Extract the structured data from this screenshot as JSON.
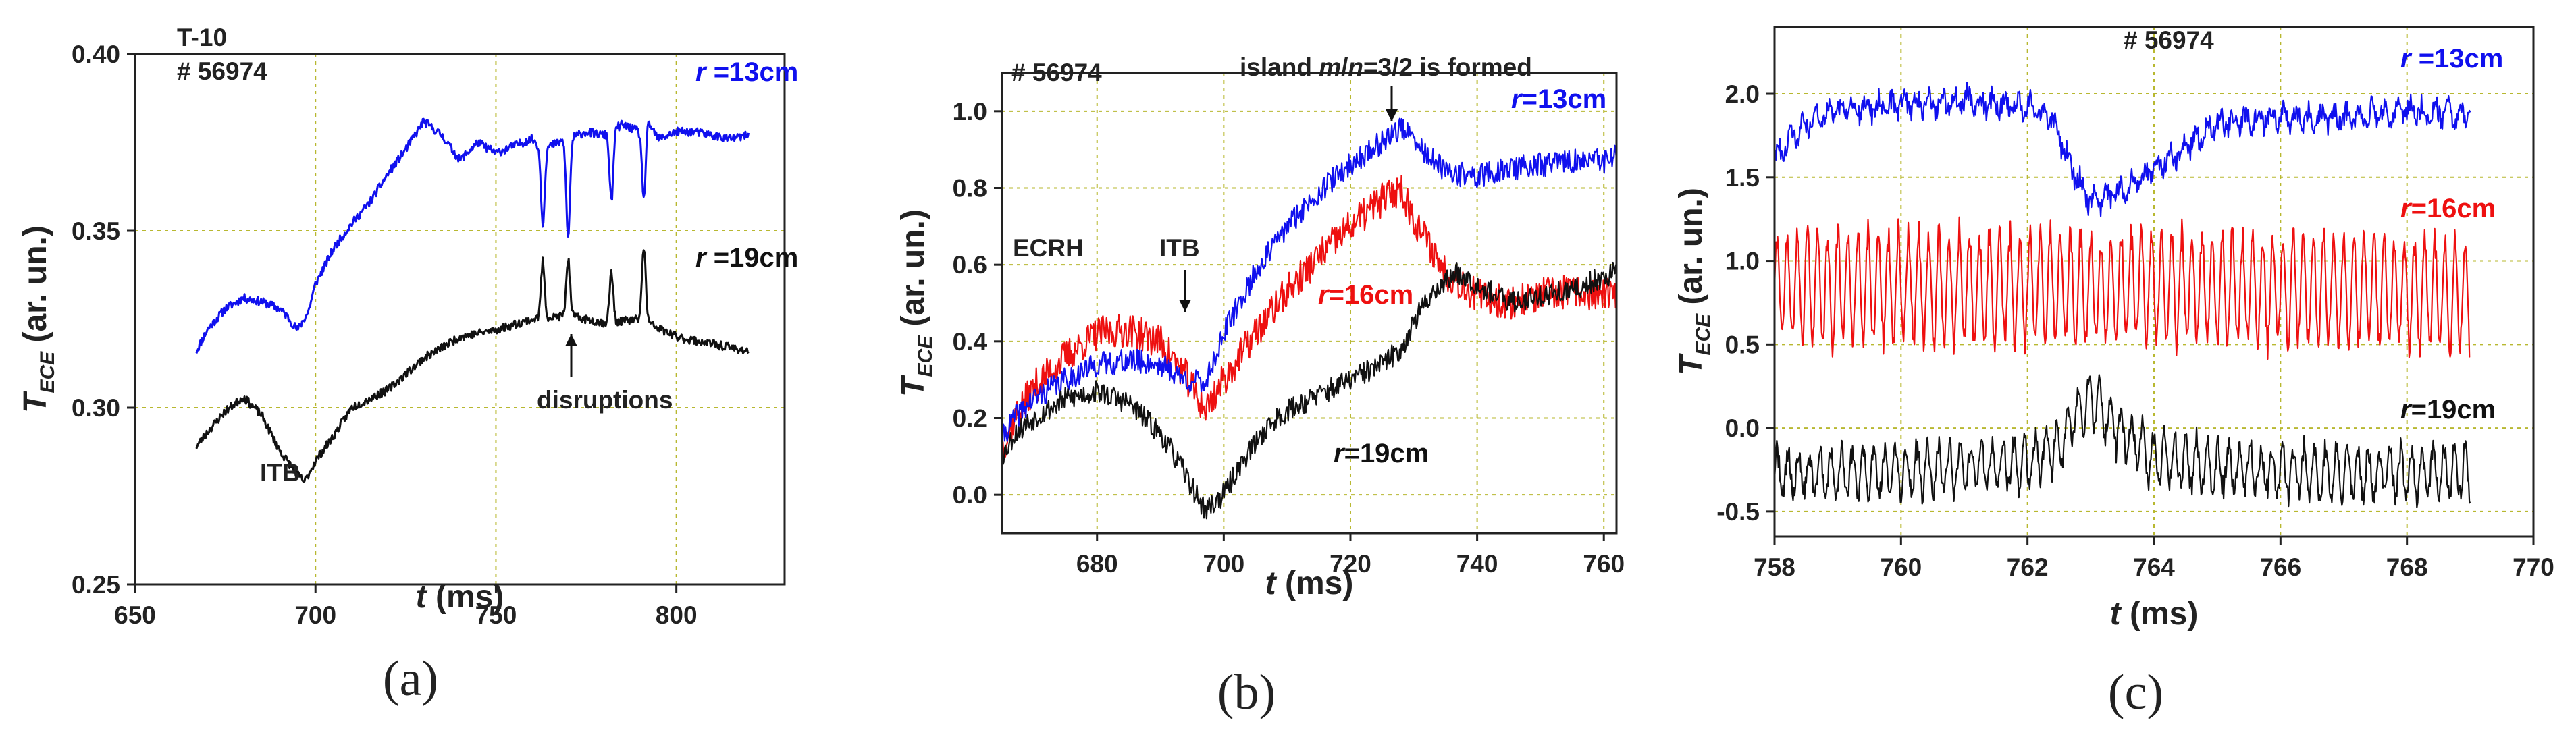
{
  "chart_data": [
    {
      "type": "line",
      "panel_label": "(a)",
      "title": "",
      "xlabel": "t (ms)",
      "ylabel": "T_ECE (ar. un.)",
      "xlim": [
        650,
        830
      ],
      "ylim": [
        0.25,
        0.4
      ],
      "xticks": [
        650,
        700,
        750,
        800
      ],
      "yticks": [
        0.25,
        0.3,
        0.35,
        0.4
      ],
      "xtick_labels": [
        "650",
        "700",
        "750",
        "800"
      ],
      "ytick_labels": [
        "0.25",
        "0.30",
        "0.35",
        "0.40"
      ],
      "grid": true,
      "series": [
        {
          "name": "r=13cm",
          "color": "#1010ee",
          "noise": 0.0012,
          "seed": 11,
          "x": [
            667,
            670,
            675,
            680,
            685,
            690,
            692,
            695,
            698,
            700,
            705,
            710,
            715,
            720,
            725,
            730,
            735,
            740,
            745,
            750,
            755,
            760,
            763,
            765,
            770,
            775,
            780,
            783,
            785,
            790,
            792,
            795,
            800,
            805,
            810,
            815,
            820
          ],
          "y": [
            0.316,
            0.322,
            0.328,
            0.331,
            0.33,
            0.328,
            0.326,
            0.322,
            0.327,
            0.335,
            0.345,
            0.352,
            0.358,
            0.366,
            0.373,
            0.381,
            0.377,
            0.37,
            0.375,
            0.372,
            0.374,
            0.376,
            0.373,
            0.374,
            0.376,
            0.378,
            0.377,
            0.379,
            0.38,
            0.378,
            0.381,
            0.376,
            0.378,
            0.378,
            0.377,
            0.376,
            0.377
          ],
          "dips": [
            [
              763,
              -0.021
            ],
            [
              770,
              -0.028
            ],
            [
              782,
              -0.02
            ],
            [
              791,
              -0.02
            ]
          ]
        },
        {
          "name": "r=19cm",
          "color": "#111111",
          "noise": 0.0012,
          "seed": 23,
          "x": [
            667,
            670,
            675,
            680,
            685,
            690,
            695,
            697,
            700,
            705,
            710,
            720,
            730,
            740,
            750,
            760,
            770,
            780,
            790,
            800,
            810,
            820
          ],
          "y": [
            0.289,
            0.293,
            0.299,
            0.303,
            0.298,
            0.288,
            0.281,
            0.279,
            0.285,
            0.292,
            0.3,
            0.305,
            0.314,
            0.32,
            0.322,
            0.325,
            0.326,
            0.324,
            0.325,
            0.32,
            0.318,
            0.316
          ],
          "dips": [
            [
              763,
              0.016
            ],
            [
              770,
              0.016
            ],
            [
              782,
              0.014
            ],
            [
              791,
              0.021
            ]
          ]
        }
      ],
      "annotations": [
        {
          "id": "ann-t10",
          "text": "T-10"
        },
        {
          "id": "ann-shot",
          "text": "# 56974"
        },
        {
          "id": "ann-itb",
          "text": "ITB"
        },
        {
          "id": "ann-disruptions",
          "text": "disruptions"
        }
      ],
      "series_labels": [
        {
          "prefix": "r",
          "rest": " =13cm",
          "color": "#1010ee"
        },
        {
          "prefix": "r",
          "rest": " =19cm",
          "color": "#111111"
        }
      ]
    },
    {
      "type": "line",
      "panel_label": "(b)",
      "title": "",
      "xlabel": "t (ms)",
      "ylabel": "T_ECE (ar. un.)",
      "xlim": [
        665,
        762
      ],
      "ylim": [
        -0.1,
        1.1
      ],
      "xticks": [
        680,
        700,
        720,
        740,
        760
      ],
      "yticks": [
        0.0,
        0.2,
        0.4,
        0.6,
        0.8,
        1.0
      ],
      "xtick_labels": [
        "680",
        "700",
        "720",
        "740",
        "760"
      ],
      "ytick_labels": [
        "0.0",
        "0.2",
        "0.4",
        "0.6",
        "0.8",
        "1.0"
      ],
      "grid": true,
      "series": [
        {
          "name": "r=16cm",
          "color": "#ee1010",
          "noise": 0.045,
          "seed": 37,
          "x": [
            665,
            667,
            670,
            675,
            680,
            685,
            690,
            694,
            697,
            700,
            705,
            710,
            715,
            720,
            725,
            728,
            730,
            735,
            740,
            745,
            750,
            755,
            760,
            762
          ],
          "y": [
            0.12,
            0.2,
            0.28,
            0.36,
            0.42,
            0.43,
            0.4,
            0.31,
            0.22,
            0.3,
            0.42,
            0.53,
            0.62,
            0.7,
            0.77,
            0.8,
            0.72,
            0.58,
            0.52,
            0.5,
            0.52,
            0.53,
            0.52,
            0.52
          ]
        },
        {
          "name": "r=13cm",
          "color": "#1010ee",
          "noise": 0.032,
          "seed": 41,
          "x": [
            665,
            667,
            670,
            675,
            680,
            685,
            690,
            694,
            697,
            700,
            705,
            710,
            715,
            720,
            725,
            728,
            730,
            735,
            740,
            745,
            750,
            755,
            760,
            762
          ],
          "y": [
            0.15,
            0.2,
            0.25,
            0.3,
            0.34,
            0.35,
            0.34,
            0.3,
            0.29,
            0.42,
            0.58,
            0.7,
            0.79,
            0.86,
            0.92,
            0.96,
            0.92,
            0.84,
            0.83,
            0.85,
            0.86,
            0.87,
            0.87,
            0.88
          ]
        },
        {
          "name": "r=19cm",
          "color": "#111111",
          "noise": 0.03,
          "seed": 53,
          "x": [
            665,
            667,
            670,
            675,
            680,
            685,
            690,
            693,
            695,
            697,
            700,
            703,
            707,
            710,
            715,
            720,
            725,
            728,
            730,
            733,
            737,
            740,
            745,
            750,
            755,
            760,
            762
          ],
          "y": [
            0.1,
            0.16,
            0.2,
            0.25,
            0.27,
            0.24,
            0.16,
            0.08,
            0.02,
            -0.04,
            0.0,
            0.09,
            0.18,
            0.22,
            0.26,
            0.3,
            0.34,
            0.38,
            0.45,
            0.53,
            0.58,
            0.55,
            0.5,
            0.52,
            0.53,
            0.57,
            0.58
          ]
        }
      ],
      "annotations": [
        {
          "id": "ann-shot",
          "text": "# 56974"
        },
        {
          "id": "ann-island",
          "text": "island m/n=3/2 is formed"
        },
        {
          "id": "ann-ecrh",
          "text": "ECRH"
        },
        {
          "id": "ann-itb",
          "text": "ITB"
        }
      ],
      "series_labels": [
        {
          "prefix": "r",
          "rest": "=13cm",
          "color": "#1010ee"
        },
        {
          "prefix": "r",
          "rest": "=16cm",
          "color": "#ee1010"
        },
        {
          "prefix": "r",
          "rest": "=19cm",
          "color": "#111111"
        }
      ]
    },
    {
      "type": "line",
      "panel_label": "(c)",
      "title": "",
      "xlabel": "t (ms)",
      "ylabel": "T_ECE (ar. un.)",
      "xlim": [
        758,
        770
      ],
      "ylim": [
        -0.65,
        2.4
      ],
      "xticks": [
        758,
        760,
        762,
        764,
        766,
        768,
        770
      ],
      "yticks": [
        -0.5,
        0.0,
        0.5,
        1.0,
        1.5,
        2.0
      ],
      "xtick_labels": [
        "758",
        "760",
        "762",
        "764",
        "766",
        "768",
        "770"
      ],
      "ytick_labels": [
        "-0.5",
        "0.0",
        "0.5",
        "1.0",
        "1.5",
        "2.0"
      ],
      "grid": true,
      "series": [
        {
          "name": "r=13cm",
          "color": "#1010ee",
          "noise": 0.06,
          "seed": 61,
          "osc_amp": 0.05,
          "osc_period": 0.2,
          "x": [
            758,
            758.5,
            759,
            760,
            761,
            762,
            762.4,
            762.7,
            763,
            763.5,
            764,
            764.5,
            765,
            766,
            767,
            768,
            769
          ],
          "y": [
            1.62,
            1.82,
            1.9,
            1.93,
            1.96,
            1.92,
            1.85,
            1.55,
            1.35,
            1.42,
            1.55,
            1.68,
            1.82,
            1.86,
            1.85,
            1.9,
            1.88
          ]
        },
        {
          "name": "r=16cm",
          "color": "#ee1010",
          "noise": 0.03,
          "seed": 67,
          "osc_amp": 0.32,
          "osc_period": 0.16,
          "x": [
            758,
            762.5,
            763,
            764,
            769
          ],
          "y": [
            0.85,
            0.84,
            0.82,
            0.85,
            0.8
          ]
        },
        {
          "name": "r=19cm",
          "color": "#111111",
          "noise": 0.06,
          "seed": 71,
          "osc_amp": 0.14,
          "osc_period": 0.17,
          "x": [
            758,
            760,
            762,
            762.5,
            762.8,
            763,
            763.3,
            764,
            766,
            769
          ],
          "y": [
            -0.28,
            -0.26,
            -0.22,
            -0.1,
            0.1,
            0.18,
            0.05,
            -0.2,
            -0.26,
            -0.28
          ]
        }
      ],
      "annotations": [
        {
          "id": "ann-shot",
          "text": "# 56974"
        }
      ],
      "series_labels": [
        {
          "prefix": "r",
          "rest": " =13cm",
          "color": "#1010ee"
        },
        {
          "prefix": "r",
          "rest": "=16cm",
          "color": "#ee1010"
        },
        {
          "prefix": "r",
          "rest": "=19cm",
          "color": "#111111"
        }
      ]
    }
  ]
}
